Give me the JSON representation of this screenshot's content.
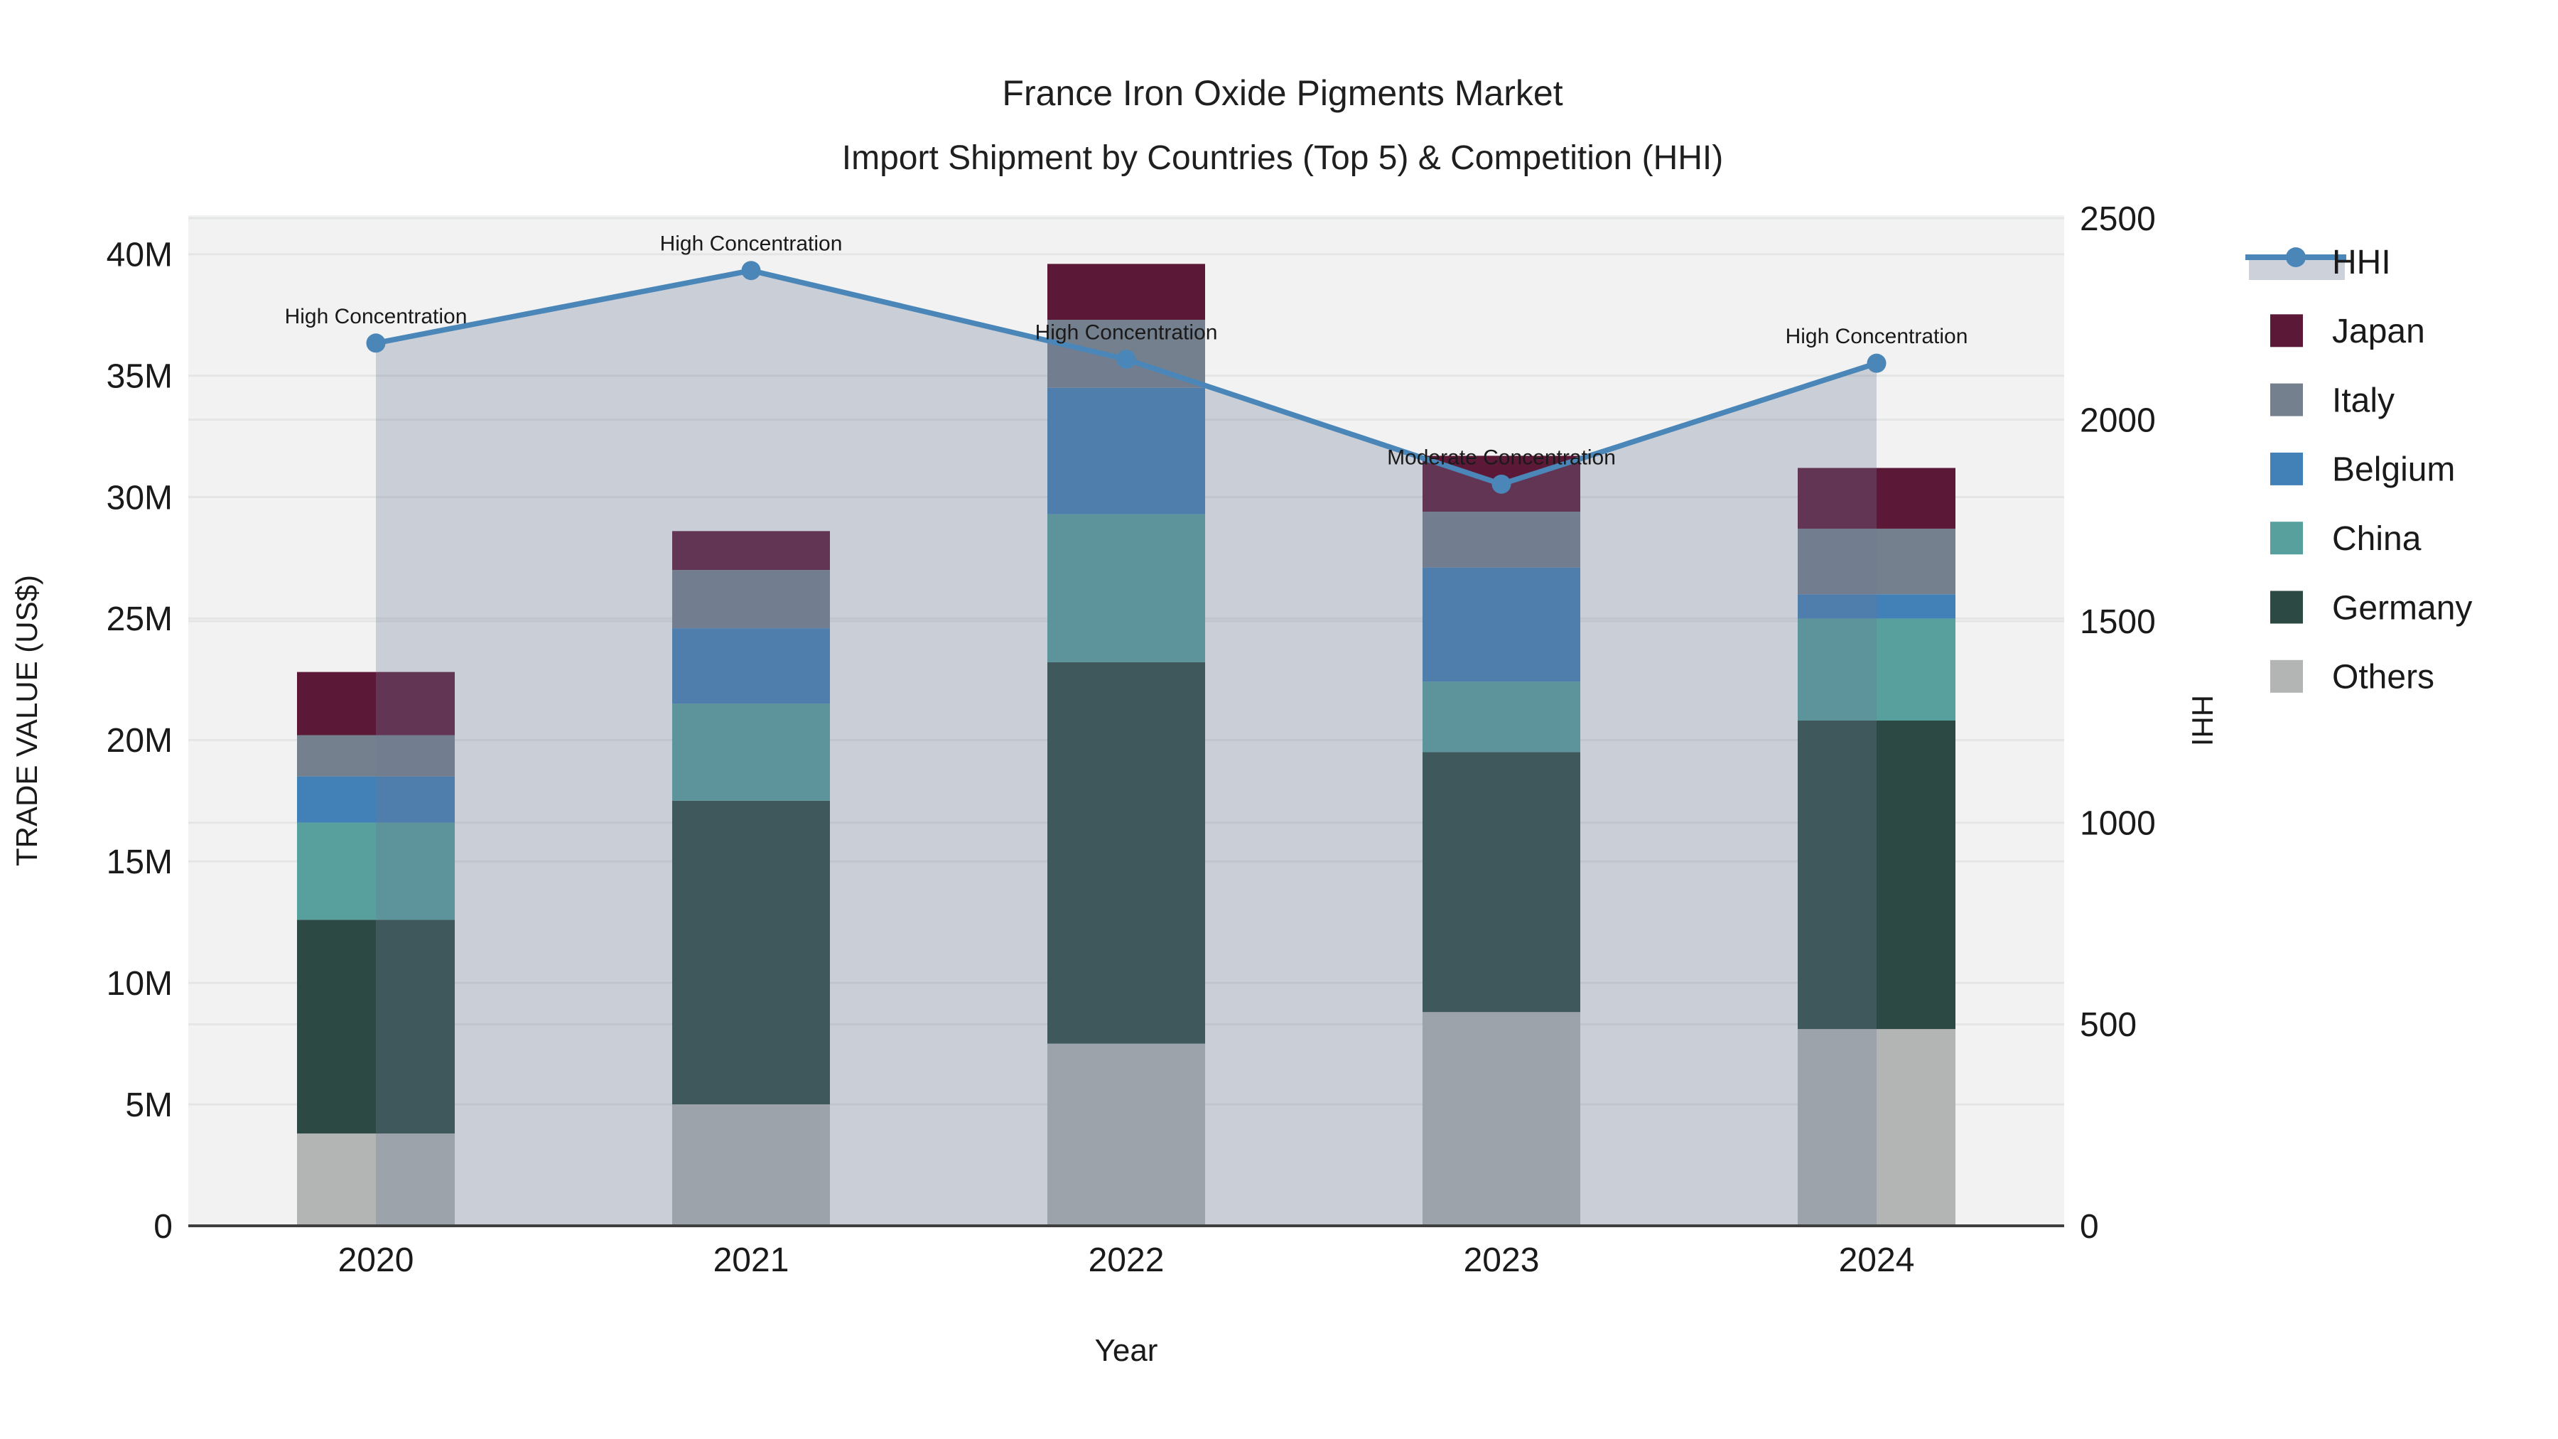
{
  "title": "France Iron Oxide Pigments Market",
  "subtitle": "Import Shipment by Countries (Top 5) & Competition (HHI)",
  "xlabel": "Year",
  "ylabel_left": "TRADE VALUE (US$)",
  "ylabel_right": "HHI",
  "colors": {
    "plot_background": "#F2F2F2",
    "gridline": "#E4E6E5",
    "axis_line": "#3F3F3F",
    "hhi_line": "#4A86B8",
    "hhi_area_fill": "rgba(108,122,150,0.30)",
    "legend_area_band": "#CDD2DA",
    "text": "#1A1A1A"
  },
  "chart_data": {
    "type": "bar",
    "subtype": "stacked-bars-with-line-area-overlay",
    "categories": [
      "2020",
      "2021",
      "2022",
      "2023",
      "2024"
    ],
    "bar_series": [
      {
        "name": "Others",
        "color": "#B2B5B4",
        "values": [
          3.8,
          5.0,
          7.5,
          8.8,
          8.1
        ]
      },
      {
        "name": "Germany",
        "color": "#2C4944",
        "values": [
          8.8,
          12.5,
          15.7,
          10.7,
          12.7
        ]
      },
      {
        "name": "China",
        "color": "#57A09E",
        "values": [
          4.0,
          4.0,
          6.1,
          2.9,
          4.2
        ]
      },
      {
        "name": "Belgium",
        "color": "#4280B8",
        "values": [
          1.9,
          3.1,
          5.2,
          4.7,
          1.0
        ]
      },
      {
        "name": "Italy",
        "color": "#75808E",
        "values": [
          1.7,
          2.4,
          2.8,
          2.3,
          2.7
        ]
      },
      {
        "name": "Japan",
        "color": "#5C1837",
        "values": [
          2.6,
          1.6,
          2.3,
          2.3,
          2.5
        ]
      }
    ],
    "bar_totals_musd": [
      22.8,
      28.6,
      39.6,
      31.7,
      31.2
    ],
    "line_series": {
      "name": "HHI",
      "axis": "right",
      "values": [
        2190,
        2370,
        2150,
        1840,
        2140
      ]
    },
    "annotations": [
      "High Concentration",
      "High Concentration",
      "High Concentration",
      "Moderate Concentration",
      "High Concentration"
    ],
    "left_axis": {
      "label": "TRADE VALUE (US$)",
      "ticks": [
        "0",
        "5M",
        "10M",
        "15M",
        "20M",
        "25M",
        "30M",
        "35M",
        "40M"
      ],
      "tick_values": [
        0,
        5,
        10,
        15,
        20,
        25,
        30,
        35,
        40
      ],
      "range_max": 41.6
    },
    "right_axis": {
      "label": "HHI",
      "ticks": [
        "0",
        "500",
        "1000",
        "1500",
        "2000",
        "2500"
      ],
      "tick_values": [
        0,
        500,
        1000,
        1500,
        2000,
        2500
      ],
      "range_max": 2507
    },
    "grid": true,
    "legend_position": "right",
    "xlabel": "Year",
    "title": "France Iron Oxide Pigments Market"
  },
  "legend": {
    "items": [
      {
        "label": "HHI",
        "kind": "line-marker"
      },
      {
        "label": "Japan",
        "kind": "swatch"
      },
      {
        "label": "Italy",
        "kind": "swatch"
      },
      {
        "label": "Belgium",
        "kind": "swatch"
      },
      {
        "label": "China",
        "kind": "swatch"
      },
      {
        "label": "Germany",
        "kind": "swatch"
      },
      {
        "label": "Others",
        "kind": "swatch"
      }
    ]
  }
}
